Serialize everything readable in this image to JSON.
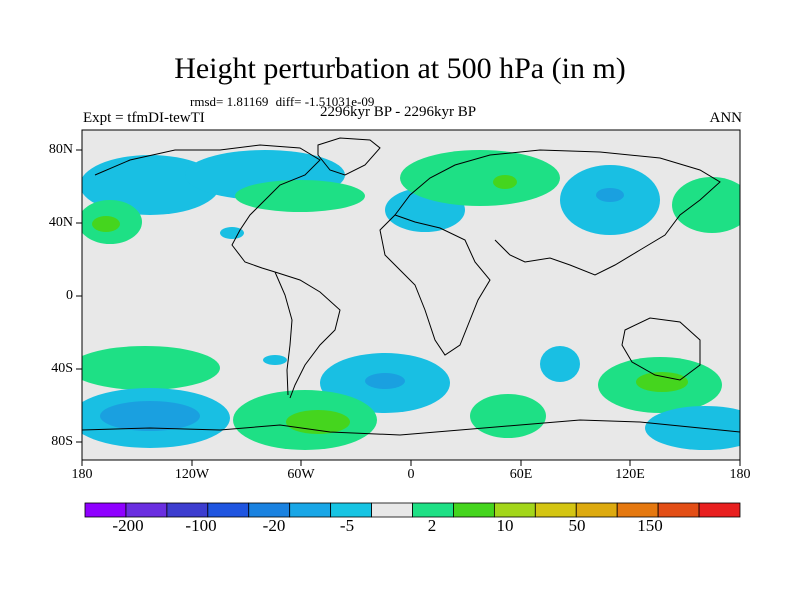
{
  "title": "Height perturbation at 500 hPa (in m)",
  "stats": {
    "rmsd": "rmsd= 1.81169",
    "diff": "diff= -1.51031e-09"
  },
  "experiment": "Expt = tfmDI-tewTI",
  "period": "2296kyr BP - 2296kyr BP",
  "season": "ANN",
  "lat_labels": [
    "80N",
    "40N",
    "0",
    "40S",
    "80S"
  ],
  "lon_labels": [
    "180",
    "120W",
    "60W",
    "0",
    "60E",
    "120E",
    "180"
  ],
  "colorbar": {
    "colors": [
      "#8f00ff",
      "#6a2ee0",
      "#3d3dcf",
      "#1f55e0",
      "#1a82e0",
      "#19a6e6",
      "#17c4e3",
      "#e8e8e8",
      "#1ee085",
      "#45d51e",
      "#a3d61a",
      "#d4c512",
      "#ddaa0f",
      "#e5780f",
      "#e34e16",
      "#e81f1f"
    ],
    "labels": [
      "-200",
      "-100",
      "-20",
      "-5",
      "2",
      "10",
      "50",
      "150"
    ]
  },
  "map_colors": {
    "background": "#e8e8e8",
    "blue_light": "#19bfe3",
    "blue_mid": "#1aa0e0",
    "green_light": "#1ee085",
    "green_mid": "#45d51e",
    "coast": "#000000"
  }
}
